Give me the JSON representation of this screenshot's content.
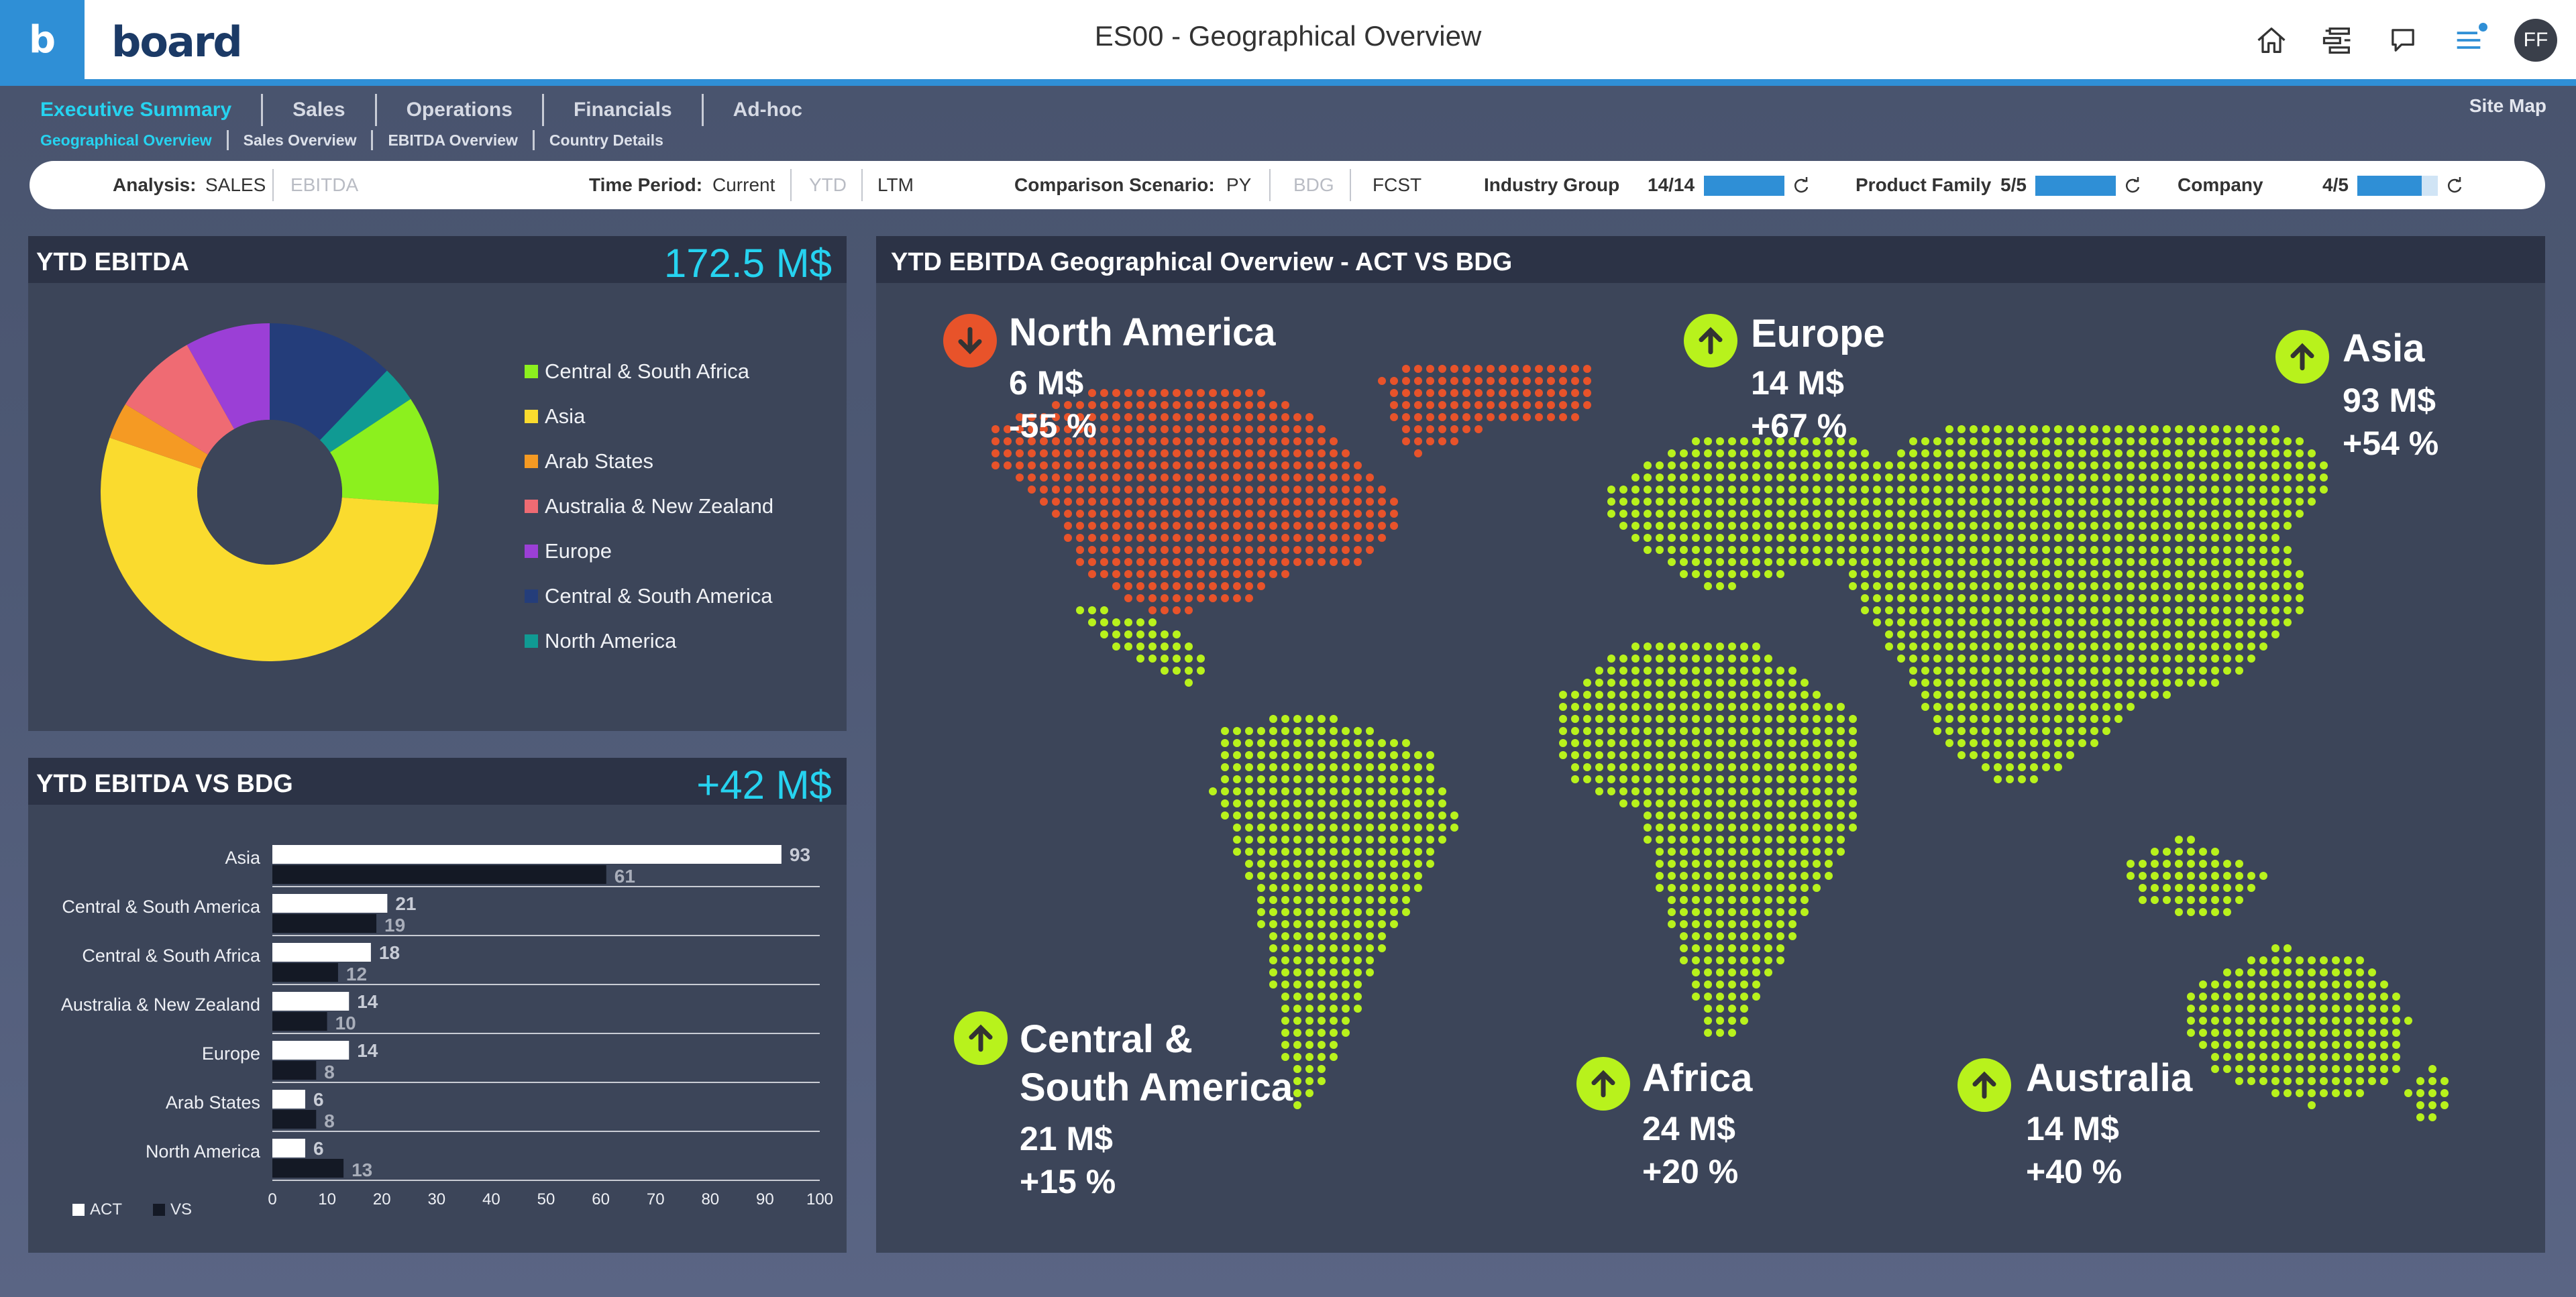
{
  "header": {
    "app_icon_letter": "b",
    "logo_text": "board",
    "title": "ES00 - Geographical Overview",
    "avatar_initials": "FF",
    "icons": [
      "home-icon",
      "hierarchy-icon",
      "chat-icon",
      "menu-icon"
    ]
  },
  "menu": {
    "items": [
      "Executive Summary",
      "Sales",
      "Operations",
      "Financials",
      "Ad-hoc"
    ],
    "sub_items": [
      "Geographical Overview",
      "Sales Overview",
      "EBITDA Overview",
      "Country Details"
    ],
    "site_map": "Site Map"
  },
  "filters": {
    "analysis_label": "Analysis:",
    "analysis_options": [
      "SALES",
      "EBITDA"
    ],
    "time_label": "Time Period:",
    "time_options": [
      "Current",
      "YTD",
      "LTM"
    ],
    "comparison_label": "Comparison Scenario:",
    "comparison_options": [
      "PY",
      "BDG",
      "FCST"
    ],
    "industry_label": "Industry Group",
    "industry_count": "14/14",
    "industry_fraction": 1.0,
    "product_label": "Product Family",
    "product_count": "5/5",
    "product_fraction": 1.0,
    "company_label": "Company",
    "company_count": "4/5",
    "company_fraction": 0.8
  },
  "ytd_panel": {
    "title": "YTD EBITDA",
    "value": "172.5 M$"
  },
  "vs_panel": {
    "title": "YTD EBITDA VS BDG",
    "value": "+42 M$",
    "legend_act": "ACT",
    "legend_vs": "VS"
  },
  "map_panel": {
    "title": "YTD EBITDA Geographical Overview - ACT  VS BDG",
    "regions": [
      {
        "name": "North America",
        "value": "6 M$",
        "change": "-55 %",
        "direction": "down",
        "color": "#e8532a"
      },
      {
        "name": "Europe",
        "value": "14 M$",
        "change": "+67 %",
        "direction": "up",
        "color": "#b8f21c"
      },
      {
        "name": "Asia",
        "value": "93 M$",
        "change": "+54 %",
        "direction": "up",
        "color": "#b8f21c"
      },
      {
        "name_line1": "Central &",
        "name_line2": "South America",
        "value": "21 M$",
        "change": "+15 %",
        "direction": "up",
        "color": "#b8f21c"
      },
      {
        "name": "Africa",
        "value": "24 M$",
        "change": "+20 %",
        "direction": "up",
        "color": "#b8f21c"
      },
      {
        "name": "Australia",
        "value": "14 M$",
        "change": "+40 %",
        "direction": "up",
        "color": "#b8f21c"
      }
    ]
  },
  "chart_data": [
    {
      "type": "pie",
      "donut": true,
      "categories": [
        "Central & South Africa",
        "Asia",
        "Arab States",
        "Australia & New Zealand",
        "Europe",
        "Central & South America",
        "North America"
      ],
      "values": [
        18,
        93,
        6,
        14,
        14,
        21,
        6
      ],
      "colors": [
        "#8cf01e",
        "#fadb2e",
        "#f59a23",
        "#ef6b73",
        "#9b3fd6",
        "#243d7a",
        "#109a93"
      ],
      "legend": "right"
    },
    {
      "type": "bar",
      "orientation": "horizontal",
      "categories": [
        "Asia",
        "Central & South America",
        "Central & South Africa",
        "Australia & New Zealand",
        "Europe",
        "Arab States",
        "North America"
      ],
      "series": [
        {
          "name": "ACT",
          "values": [
            93,
            21,
            18,
            14,
            14,
            6,
            6
          ],
          "color": "#ffffff"
        },
        {
          "name": "VS",
          "values": [
            61,
            19,
            12,
            10,
            8,
            8,
            13
          ],
          "color": "#141925"
        }
      ],
      "xlim": [
        0,
        100
      ],
      "xticks": [
        0,
        10,
        20,
        30,
        40,
        50,
        60,
        70,
        80,
        90,
        100
      ],
      "legend": "bottom-left"
    }
  ]
}
